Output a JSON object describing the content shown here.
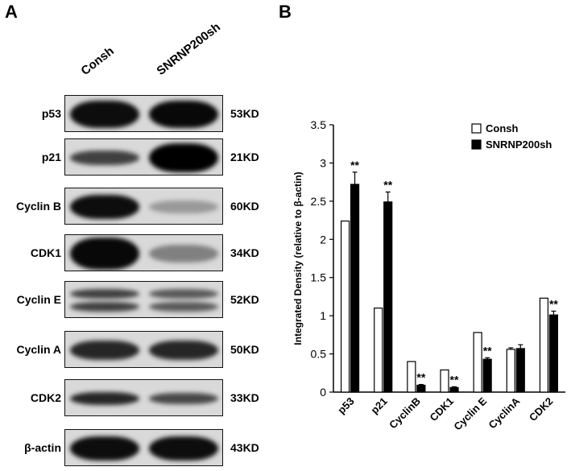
{
  "panel_labels": {
    "a": "A",
    "b": "B"
  },
  "blot": {
    "lanes": [
      "Consh",
      "SNRNP200sh"
    ],
    "rows": [
      {
        "protein": "p53",
        "size": "53KD"
      },
      {
        "protein": "p21",
        "size": "21KD"
      },
      {
        "protein": "Cyclin B",
        "size": "60KD"
      },
      {
        "protein": "CDK1",
        "size": "34KD"
      },
      {
        "protein": "Cyclin E",
        "size": "52KD"
      },
      {
        "protein": "Cyclin A",
        "size": "50KD"
      },
      {
        "protein": "CDK2",
        "size": "33KD"
      },
      {
        "protein": "β-actin",
        "size": "43KD"
      }
    ]
  },
  "chart_data": {
    "type": "bar",
    "categories": [
      "p53",
      "p21",
      "CyclinB",
      "CDK1",
      "Cyclin E",
      "CyclinA",
      "CDK2"
    ],
    "series": [
      {
        "name": "Consh",
        "values": [
          2.24,
          1.1,
          0.4,
          0.29,
          0.78,
          0.56,
          1.23
        ],
        "errors": [
          0,
          0,
          0,
          0,
          0,
          0.02,
          0
        ],
        "color": "#ffffff"
      },
      {
        "name": "SNRNP200sh",
        "values": [
          2.72,
          2.49,
          0.09,
          0.06,
          0.43,
          0.57,
          1.01
        ],
        "errors": [
          0.16,
          0.13,
          0.01,
          0.01,
          0.02,
          0.05,
          0.05
        ],
        "color": "#000000"
      }
    ],
    "significance": [
      "**",
      "**",
      "**",
      "**",
      "**",
      "",
      "**"
    ],
    "ylabel": "Integrated Density (relative to β-actin)",
    "xlabel": "",
    "ylim": [
      0,
      3.5
    ],
    "yticks": [
      "0",
      "0.5",
      "1",
      "1.5",
      "2",
      "2.5",
      "3",
      "3.5"
    ],
    "legend_position": "top-right",
    "grid": false
  }
}
